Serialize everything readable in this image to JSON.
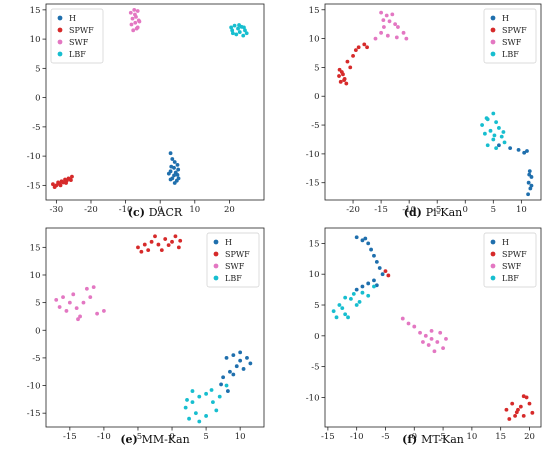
{
  "figure": {
    "legend_names": [
      "H",
      "SPWF",
      "SWF",
      "LBF"
    ],
    "colors": {
      "H": "#1f6fad",
      "SPWF": "#d62a2a",
      "SWF": "#e377c2",
      "LBF": "#17becf"
    }
  },
  "chart_data": [
    {
      "type": "scatter",
      "caption_letter": "(c)",
      "caption_name": "DACR",
      "xlim": [
        -33,
        30
      ],
      "ylim": [
        -17.5,
        16
      ],
      "xticks": [
        -30,
        -20,
        -10,
        0,
        10,
        20
      ],
      "yticks": [
        -15,
        -10,
        -5,
        0,
        5,
        10,
        15
      ],
      "legend_position": "top-left",
      "series": [
        {
          "name": "H",
          "points": [
            [
              3.0,
              -9.5
            ],
            [
              3.5,
              -10.5
            ],
            [
              4.2,
              -11
            ],
            [
              5.0,
              -11.5
            ],
            [
              3.2,
              -11.8
            ],
            [
              4.0,
              -12
            ],
            [
              5.2,
              -12.3
            ],
            [
              3.0,
              -12.6
            ],
            [
              4.5,
              -12.8
            ],
            [
              2.5,
              -13
            ],
            [
              4.0,
              -13.3
            ],
            [
              5.0,
              -13.2
            ],
            [
              3.5,
              -13.8
            ],
            [
              4.8,
              -14.2
            ],
            [
              3.0,
              -14
            ],
            [
              4.2,
              -14.6
            ],
            [
              5.3,
              -13.8
            ]
          ]
        },
        {
          "name": "SPWF",
          "points": [
            [
              -31,
              -14.8
            ],
            [
              -30,
              -15
            ],
            [
              -29.5,
              -14.5
            ],
            [
              -29,
              -14.8
            ],
            [
              -28.5,
              -14.3
            ],
            [
              -28,
              -14.5
            ],
            [
              -27.5,
              -14
            ],
            [
              -27,
              -14.2
            ],
            [
              -26.5,
              -13.8
            ],
            [
              -26,
              -14
            ],
            [
              -25.5,
              -13.5
            ],
            [
              -30.5,
              -15.3
            ],
            [
              -28.8,
              -15
            ],
            [
              -27.2,
              -14.6
            ],
            [
              -25.8,
              -14.1
            ]
          ]
        },
        {
          "name": "SWF",
          "points": [
            [
              -8.5,
              14.5
            ],
            [
              -7.5,
              15
            ],
            [
              -6.5,
              14.8
            ],
            [
              -8.0,
              13.5
            ],
            [
              -7.0,
              13.8
            ],
            [
              -6.2,
              13.2
            ],
            [
              -8.3,
              12.5
            ],
            [
              -7.2,
              12.8
            ],
            [
              -6.5,
              12
            ],
            [
              -7.8,
              11.5
            ],
            [
              -6.8,
              11.8
            ],
            [
              -7.3,
              14.2
            ],
            [
              -6.0,
              13.0
            ]
          ]
        },
        {
          "name": "LBF",
          "points": [
            [
              20.5,
              12
            ],
            [
              21.5,
              12.3
            ],
            [
              22.5,
              11.8
            ],
            [
              23.5,
              12.1
            ],
            [
              24.5,
              11.5
            ],
            [
              21,
              11
            ],
            [
              22,
              10.8
            ],
            [
              23,
              11.2
            ],
            [
              24,
              10.6
            ],
            [
              25,
              11
            ],
            [
              20.8,
              11.5
            ],
            [
              22.8,
              12.4
            ],
            [
              24.2,
              12.0
            ]
          ]
        }
      ]
    },
    {
      "type": "scatter",
      "caption_letter": "(d)",
      "caption_name": "Pi-Kan",
      "xlim": [
        -25,
        13.5
      ],
      "ylim": [
        -18,
        16
      ],
      "xticks": [
        -20,
        -15,
        -10,
        -5,
        0,
        5,
        10
      ],
      "yticks": [
        -15,
        -10,
        -5,
        0,
        5,
        10,
        15
      ],
      "legend_position": "top-right",
      "series": [
        {
          "name": "H",
          "points": [
            [
              6,
              -8.5
            ],
            [
              8,
              -9
            ],
            [
              9.5,
              -9.3
            ],
            [
              11,
              -9.5
            ],
            [
              11.5,
              -13
            ],
            [
              11.8,
              -14
            ],
            [
              11.3,
              -15
            ],
            [
              11.6,
              -16
            ],
            [
              11.2,
              -17
            ],
            [
              11.8,
              -15.5
            ],
            [
              11.4,
              -13.6
            ],
            [
              10.5,
              -9.8
            ]
          ]
        },
        {
          "name": "SPWF",
          "points": [
            [
              -22.5,
              3.5
            ],
            [
              -22,
              4.2
            ],
            [
              -21.5,
              3
            ],
            [
              -22.2,
              2.5
            ],
            [
              -21.8,
              3.8
            ],
            [
              -21.2,
              2.2
            ],
            [
              -20.5,
              5
            ],
            [
              -21,
              6
            ],
            [
              -20,
              7
            ],
            [
              -19.5,
              8
            ],
            [
              -19,
              8.5
            ],
            [
              -18,
              9
            ],
            [
              -17.5,
              8.5
            ],
            [
              -22.4,
              4.6
            ],
            [
              -21.6,
              2.8
            ]
          ]
        },
        {
          "name": "SWF",
          "points": [
            [
              -16,
              10
            ],
            [
              -15,
              11
            ],
            [
              -14.5,
              12
            ],
            [
              -13.5,
              13
            ],
            [
              -12.5,
              12.5
            ],
            [
              -14,
              14
            ],
            [
              -15,
              14.5
            ],
            [
              -13,
              14.2
            ],
            [
              -12,
              12
            ],
            [
              -11,
              11
            ],
            [
              -10.5,
              10
            ],
            [
              -13.8,
              10.5
            ],
            [
              -12.2,
              10.2
            ],
            [
              -14.6,
              13.2
            ]
          ]
        },
        {
          "name": "LBF",
          "points": [
            [
              3,
              -5
            ],
            [
              4,
              -4
            ],
            [
              5,
              -3
            ],
            [
              5.5,
              -4.5
            ],
            [
              4.5,
              -6
            ],
            [
              6,
              -5.5
            ],
            [
              3.5,
              -6.5
            ],
            [
              5,
              -7.5
            ],
            [
              6.5,
              -7
            ],
            [
              7,
              -8
            ],
            [
              4,
              -8.5
            ],
            [
              5.5,
              -9
            ],
            [
              6.8,
              -6.2
            ],
            [
              3.8,
              -3.8
            ],
            [
              5.2,
              -6.8
            ]
          ]
        }
      ]
    },
    {
      "type": "scatter",
      "caption_letter": "(e)",
      "caption_name": "MM-Kan",
      "xlim": [
        -18.5,
        13.5
      ],
      "ylim": [
        -17.5,
        18.5
      ],
      "xticks": [
        -15,
        -10,
        -5,
        0,
        5,
        10
      ],
      "yticks": [
        -15,
        -10,
        -5,
        0,
        5,
        10,
        15
      ],
      "legend_position": "top-right",
      "series": [
        {
          "name": "H",
          "points": [
            [
              8,
              -5
            ],
            [
              9,
              -4.5
            ],
            [
              10,
              -5.5
            ],
            [
              11,
              -5
            ],
            [
              9.5,
              -6.5
            ],
            [
              10.5,
              -7
            ],
            [
              8.5,
              -7.5
            ],
            [
              11.5,
              -6
            ],
            [
              7.5,
              -8.5
            ],
            [
              9,
              -8
            ],
            [
              10,
              -4
            ],
            [
              8.2,
              -11
            ],
            [
              7.2,
              -9.8
            ]
          ]
        },
        {
          "name": "SPWF",
          "points": [
            [
              -5,
              15
            ],
            [
              -4,
              15.5
            ],
            [
              -3,
              16
            ],
            [
              -2,
              15.5
            ],
            [
              -1,
              16.5
            ],
            [
              0,
              16
            ],
            [
              1,
              15
            ],
            [
              -3.5,
              14.5
            ],
            [
              -2.5,
              17
            ],
            [
              -1.5,
              14.5
            ],
            [
              0.5,
              17
            ],
            [
              -4.5,
              14.2
            ],
            [
              1.2,
              16.2
            ],
            [
              -0.5,
              15.4
            ]
          ]
        },
        {
          "name": "SWF",
          "points": [
            [
              -17,
              5.5
            ],
            [
              -16,
              6
            ],
            [
              -15,
              5
            ],
            [
              -14,
              4
            ],
            [
              -13,
              5
            ],
            [
              -12,
              6
            ],
            [
              -11,
              3
            ],
            [
              -10,
              3.5
            ],
            [
              -15.5,
              3.5
            ],
            [
              -13.5,
              2.5
            ],
            [
              -12.5,
              7.5
            ],
            [
              -11.5,
              7.8
            ],
            [
              -14.5,
              6.5
            ],
            [
              -16.5,
              4.2
            ],
            [
              -13.8,
              2.0
            ]
          ]
        },
        {
          "name": "LBF",
          "points": [
            [
              2,
              -14
            ],
            [
              3,
              -13
            ],
            [
              4,
              -12
            ],
            [
              5,
              -11.5
            ],
            [
              6,
              -13
            ],
            [
              7,
              -12
            ],
            [
              3.5,
              -15
            ],
            [
              5,
              -15.5
            ],
            [
              2.5,
              -16
            ],
            [
              4,
              -16.5
            ],
            [
              6.5,
              -14.5
            ],
            [
              8,
              -10
            ],
            [
              3,
              -11
            ],
            [
              5.8,
              -10.8
            ],
            [
              2.2,
              -12.6
            ]
          ]
        }
      ]
    },
    {
      "type": "scatter",
      "caption_letter": "(f)",
      "caption_name": "MT-Kan",
      "xlim": [
        -15.5,
        22
      ],
      "ylim": [
        -14.8,
        17.5
      ],
      "xticks": [
        -15,
        -10,
        -5,
        0,
        5,
        10,
        15,
        20
      ],
      "yticks": [
        -10,
        -5,
        0,
        5,
        10,
        15
      ],
      "legend_position": "top-right",
      "series": [
        {
          "name": "H",
          "points": [
            [
              -10,
              16
            ],
            [
              -9,
              15.5
            ],
            [
              -8,
              15
            ],
            [
              -7.5,
              14
            ],
            [
              -7,
              13
            ],
            [
              -6.5,
              12
            ],
            [
              -6,
              11
            ],
            [
              -5.5,
              10
            ],
            [
              -7,
              9
            ],
            [
              -8,
              8.5
            ],
            [
              -9,
              8
            ],
            [
              -10,
              7.5
            ],
            [
              -6.5,
              8.2
            ],
            [
              -8.5,
              15.8
            ]
          ]
        },
        {
          "name": "SPWF",
          "points": [
            [
              16,
              -12
            ],
            [
              17,
              -11
            ],
            [
              18,
              -12
            ],
            [
              19,
              -13
            ],
            [
              20,
              -11
            ],
            [
              19.5,
              -10
            ],
            [
              18.5,
              -11.5
            ],
            [
              17.5,
              -13
            ],
            [
              16.5,
              -13.5
            ],
            [
              20.5,
              -12.5
            ],
            [
              19,
              -9.8
            ],
            [
              17.8,
              -12.4
            ],
            [
              -5,
              10.5
            ],
            [
              -4.5,
              9.8
            ]
          ]
        },
        {
          "name": "SWF",
          "points": [
            [
              -2,
              2.8
            ],
            [
              -1,
              2
            ],
            [
              0,
              1.5
            ],
            [
              1,
              0.5
            ],
            [
              2,
              0
            ],
            [
              3,
              -0.5
            ],
            [
              4,
              -1
            ],
            [
              5,
              -2
            ],
            [
              3.5,
              -2.5
            ],
            [
              2.5,
              -1.5
            ],
            [
              4.5,
              0.5
            ],
            [
              1.5,
              -1
            ],
            [
              5.5,
              -0.5
            ],
            [
              3,
              0.8
            ]
          ]
        },
        {
          "name": "LBF",
          "points": [
            [
              -14,
              4
            ],
            [
              -13,
              5
            ],
            [
              -12,
              3.5
            ],
            [
              -11,
              6
            ],
            [
              -10,
              5
            ],
            [
              -9,
              7
            ],
            [
              -8,
              6.5
            ],
            [
              -7,
              8
            ],
            [
              -12.5,
              4.5
            ],
            [
              -11.5,
              3
            ],
            [
              -13.5,
              3
            ],
            [
              -10.5,
              6.8
            ],
            [
              -9.5,
              5.5
            ],
            [
              -12,
              6.2
            ]
          ]
        }
      ]
    }
  ]
}
